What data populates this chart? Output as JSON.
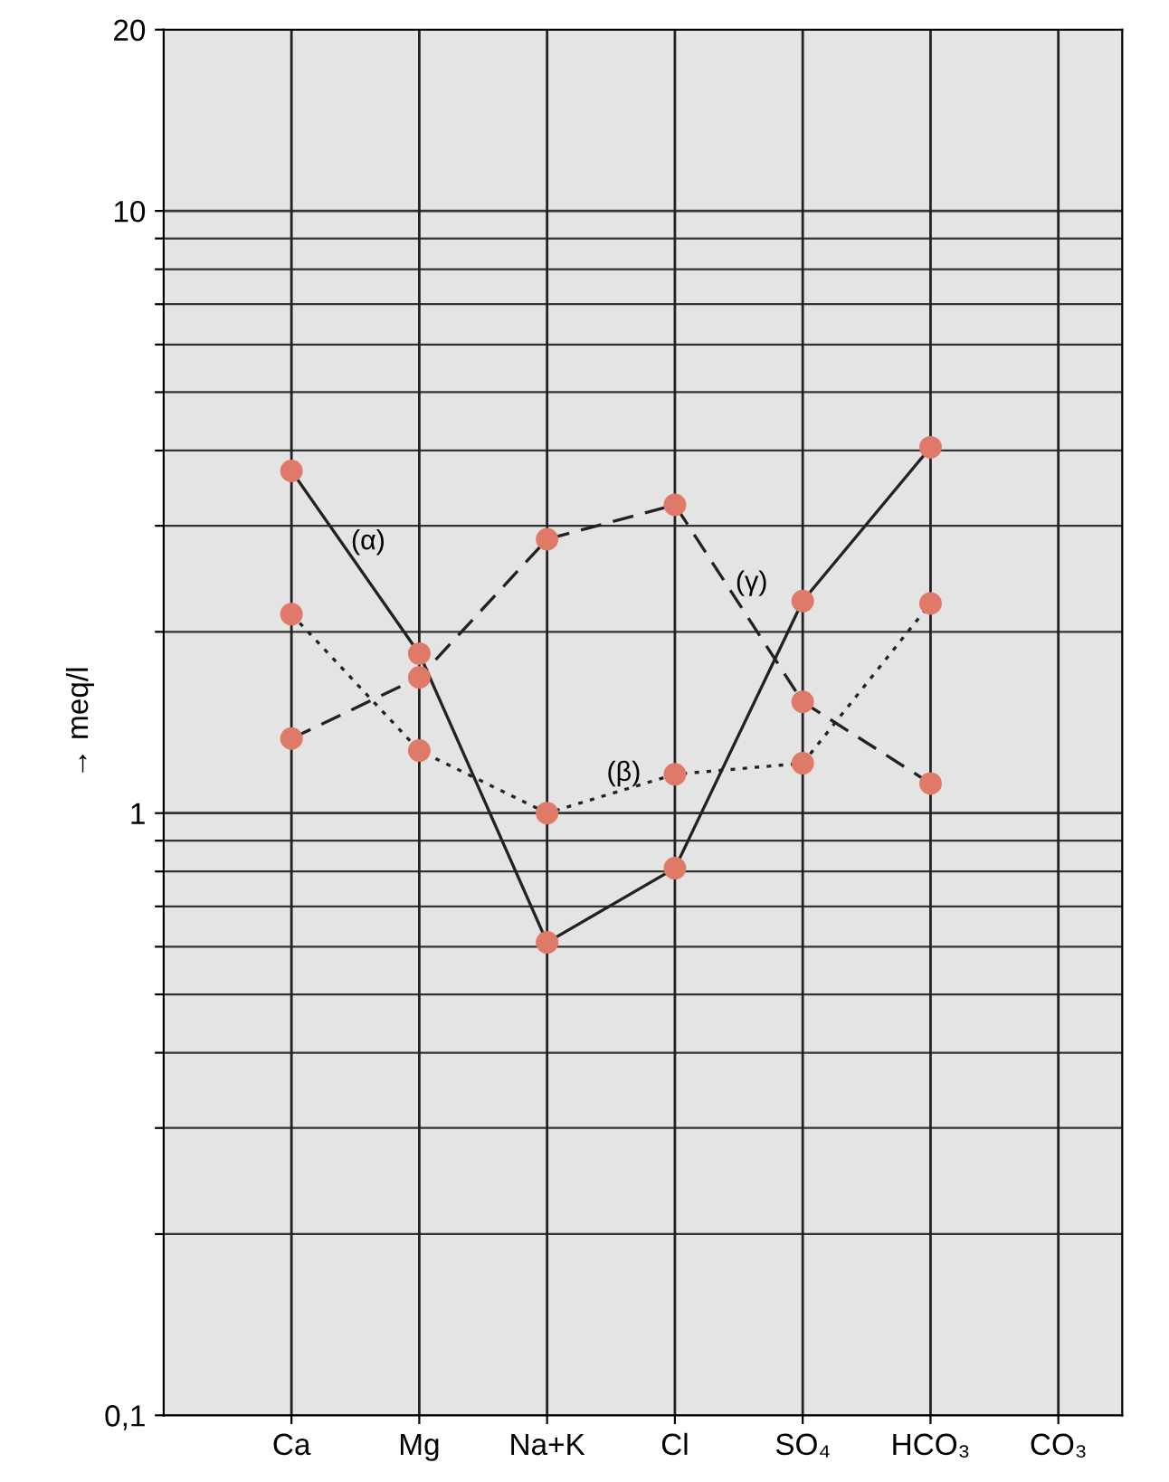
{
  "chart_data": {
    "type": "line",
    "ylabel": "→ meq/l",
    "categories": [
      "Ca",
      "Mg",
      "Na+K",
      "Cl",
      "SO₄",
      "HCO₃",
      "CO₃"
    ],
    "log": true,
    "ylim": [
      0.1,
      20
    ],
    "yticks": [
      {
        "value": 0.1,
        "label": "0,1"
      },
      {
        "value": 0.2,
        "label": null
      },
      {
        "value": 0.3,
        "label": null
      },
      {
        "value": 0.4,
        "label": null
      },
      {
        "value": 0.5,
        "label": null
      },
      {
        "value": 0.6,
        "label": null
      },
      {
        "value": 0.7,
        "label": null
      },
      {
        "value": 0.8,
        "label": null
      },
      {
        "value": 0.9,
        "label": null
      },
      1,
      {
        "value": 2,
        "label": null
      },
      {
        "value": 3,
        "label": null
      },
      {
        "value": 4,
        "label": null
      },
      {
        "value": 5,
        "label": null
      },
      {
        "value": 6,
        "label": null
      },
      {
        "value": 7,
        "label": null
      },
      {
        "value": 8,
        "label": null
      },
      {
        "value": 9,
        "label": null
      },
      10,
      20
    ],
    "grid": true,
    "marker": "circle",
    "series": [
      {
        "name": "(α)",
        "color": "#e07a68",
        "line_style": "solid",
        "values": [
          3.7,
          1.84,
          0.61,
          0.81,
          2.25,
          4.05,
          null
        ]
      },
      {
        "name": "(β)",
        "color": "#e07a68",
        "line_style": "dotted",
        "values": [
          2.14,
          1.27,
          1.0,
          1.16,
          1.21,
          2.23,
          null
        ]
      },
      {
        "name": "(γ)",
        "color": "#e07a68",
        "line_style": "dashed",
        "values": [
          1.33,
          1.68,
          2.85,
          3.25,
          1.53,
          1.12,
          null
        ]
      }
    ]
  }
}
